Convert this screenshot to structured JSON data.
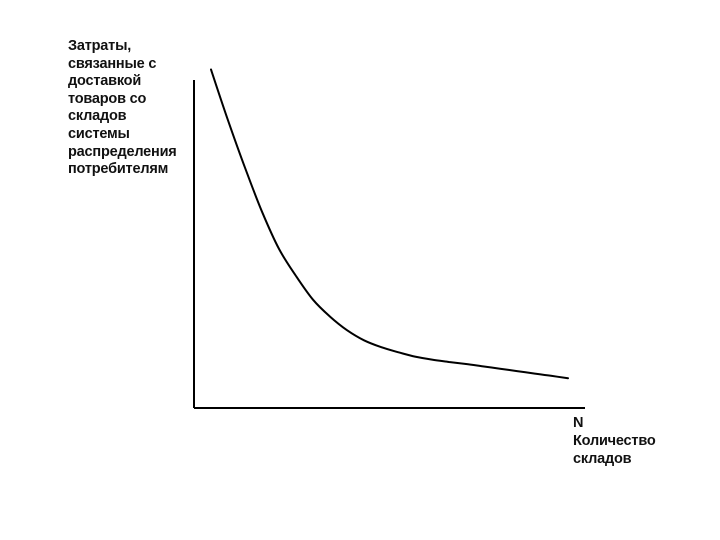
{
  "chart_data": {
    "type": "line",
    "title": "",
    "ylabel_lines": [
      "Затраты,",
      "связанные с",
      "доставкой",
      "товаров со",
      "складов",
      "системы",
      "распределения",
      "потребителям"
    ],
    "x_axis_symbol": "N",
    "xlabel_lines": [
      "Количество",
      "складов"
    ],
    "grid": false,
    "legend": "none",
    "series": [
      {
        "color": "#000000",
        "x": [
          0.5,
          1,
          1.5,
          2,
          2.5,
          3,
          3.5,
          4,
          4.5,
          5,
          5.5,
          6,
          6.5,
          7,
          7.5,
          8,
          8.5,
          9,
          9.5,
          10,
          10.5,
          11
        ],
        "y": [
          100,
          85,
          71,
          58,
          47,
          39,
          32,
          27,
          23,
          20,
          18,
          16.5,
          15.2,
          14.3,
          13.6,
          13,
          12.3,
          11.6,
          10.9,
          10.2,
          9.5,
          8.8
        ]
      }
    ],
    "xlim": [
      0,
      11.5
    ],
    "ylim": [
      0,
      104
    ]
  }
}
